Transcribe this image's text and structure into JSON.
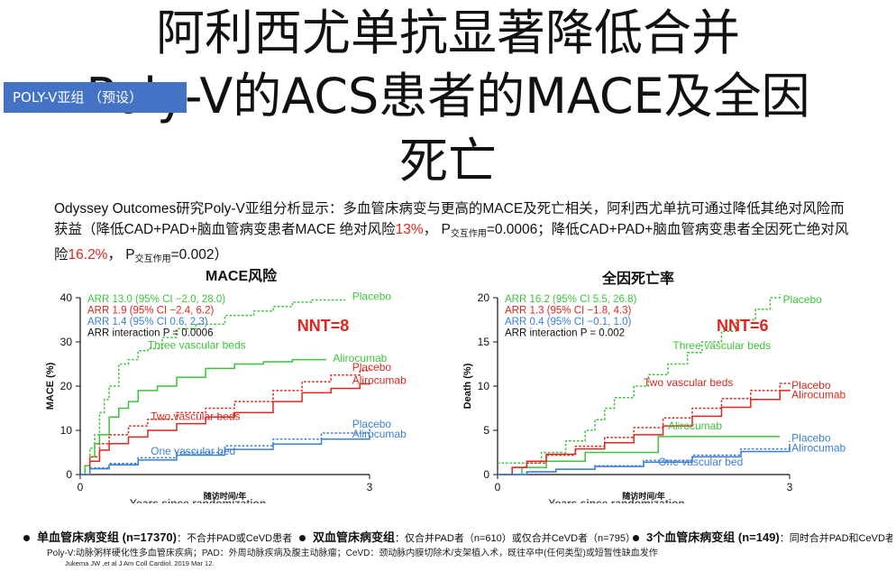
{
  "slide": {
    "title_line1": "阿利西尤单抗显著降低合并",
    "title_line2": "Poly-V的ACS患者的MACE及全因",
    "title_line3": "死亡",
    "badge": "POLY-V亚组 （预设）",
    "summary_p1": "Odyssey Outcomes研究Poly-V亚组分析显示：多血管床病变与更高的MACE及死亡相关，阿利西尤单抗可通过降低其绝对风险而获益（降低CAD+PAD+脑血管病变患者MACE 绝对风险",
    "summary_v1": "13%",
    "summary_p2": "， P",
    "summary_sub": "交互作用",
    "summary_p3": "=0.0006；降低CAD+PAD+脑血管病变患者全因死亡绝对风险",
    "summary_v2": "16.2%",
    "summary_p4": "， P",
    "summary_p5": "=0.002）",
    "legend": [
      {
        "label": "单血管床病变组",
        "n": "(n=17370)",
        "desc": "：不合并PAD或CeVD患者"
      },
      {
        "label": "双血管床病变组",
        "n": "",
        "desc": "：仅合并PAD者（n=610）或仅合并CeVD者（n=795）"
      },
      {
        "label": "3个血管床病变组",
        "n": "(n=149)",
        "desc": "：同时合并PAD和CeVD者"
      }
    ],
    "footnote": "Poly-V:动脉粥样硬化性多血管床疾病；PAD：外周动脉疾病及腹主动脉瘤；CeVD：颈动脉内膜切除术/支架植入术，既往卒中(任何类型)或短暂性缺血发作",
    "citation": "Jukema JW ,et al J Am Coll Cardiol. 2019 Mar 12."
  },
  "chart_data": [
    {
      "type": "line",
      "title": "MACE风险",
      "xlabel": "随访时间/年",
      "xlabel_en": "Years since randomization",
      "ylabel": "MACE (%)",
      "xlim": [
        0,
        3
      ],
      "ylim": [
        0,
        40
      ],
      "xticks": [
        "0",
        "3"
      ],
      "yticks": [
        "0",
        "10",
        "20",
        "30",
        "40"
      ],
      "nnt": "NNT=8",
      "stats": [
        {
          "text": "ARR 13.0 (95% CI −2.0, 28.0)",
          "color": "#3cc43c"
        },
        {
          "text": "ARR 1.9 (95% CI −2.4, 6.2)",
          "color": "#e0261e"
        },
        {
          "text": "ARR 1.4 (95% CI 0.6, 2.3)",
          "color": "#3a7fd8"
        },
        {
          "text": "ARR interaction P = 0.0006",
          "color": "#111111"
        }
      ],
      "group_labels": [
        {
          "text": "Three vascular beds",
          "color": "#3cc43c",
          "x": 0.7,
          "y": 28.5
        },
        {
          "text": "Two vascular beds",
          "color": "#e0261e",
          "x": 0.73,
          "y": 12.3
        },
        {
          "text": "One vascular bed",
          "color": "#3a7fd8",
          "x": 0.73,
          "y": 4.5
        }
      ],
      "series": [
        {
          "name": "Placebo",
          "color": "#3cc43c",
          "dash": true,
          "points": [
            [
              0,
              0
            ],
            [
              0.05,
              2
            ],
            [
              0.1,
              6
            ],
            [
              0.15,
              9
            ],
            [
              0.2,
              14
            ],
            [
              0.25,
              17
            ],
            [
              0.3,
              20
            ],
            [
              0.4,
              25
            ],
            [
              0.5,
              26
            ],
            [
              0.6,
              28
            ],
            [
              0.7,
              28.5
            ],
            [
              0.85,
              31
            ],
            [
              1.0,
              33
            ],
            [
              1.2,
              34
            ],
            [
              1.5,
              36
            ],
            [
              1.8,
              37
            ],
            [
              2.0,
              38
            ],
            [
              2.2,
              39
            ],
            [
              2.4,
              39.5
            ],
            [
              2.75,
              39.5
            ]
          ]
        },
        {
          "name": "Alirocumab",
          "color": "#3cc43c",
          "dash": false,
          "points": [
            [
              0,
              0
            ],
            [
              0.05,
              2
            ],
            [
              0.1,
              4
            ],
            [
              0.15,
              7
            ],
            [
              0.2,
              9
            ],
            [
              0.3,
              13
            ],
            [
              0.4,
              15
            ],
            [
              0.5,
              16.5
            ],
            [
              0.6,
              19
            ],
            [
              0.8,
              20
            ],
            [
              1.0,
              22
            ],
            [
              1.3,
              24
            ],
            [
              1.6,
              25
            ],
            [
              1.9,
              25.5
            ],
            [
              2.2,
              26
            ],
            [
              2.55,
              26
            ]
          ]
        },
        {
          "name": "Placebo",
          "color": "#e0261e",
          "dash": true,
          "points": [
            [
              0,
              0
            ],
            [
              0.1,
              4
            ],
            [
              0.2,
              7
            ],
            [
              0.3,
              9
            ],
            [
              0.5,
              11
            ],
            [
              0.7,
              12.5
            ],
            [
              1.0,
              14
            ],
            [
              1.3,
              15
            ],
            [
              1.6,
              16.5
            ],
            [
              2.0,
              19
            ],
            [
              2.3,
              21
            ],
            [
              2.6,
              22.5
            ],
            [
              2.9,
              23.5
            ],
            [
              3.0,
              24
            ]
          ]
        },
        {
          "name": "Alirocumab",
          "color": "#e0261e",
          "dash": false,
          "points": [
            [
              0,
              0
            ],
            [
              0.1,
              3
            ],
            [
              0.2,
              5.5
            ],
            [
              0.3,
              7
            ],
            [
              0.5,
              8.5
            ],
            [
              0.7,
              10
            ],
            [
              1.0,
              11.5
            ],
            [
              1.3,
              13
            ],
            [
              1.6,
              14
            ],
            [
              2.0,
              16.5
            ],
            [
              2.3,
              18.5
            ],
            [
              2.6,
              19.5
            ],
            [
              2.9,
              20.5
            ],
            [
              3.0,
              20.8
            ]
          ]
        },
        {
          "name": "Placebo",
          "color": "#3a7fd8",
          "dash": true,
          "points": [
            [
              0,
              0
            ],
            [
              0.1,
              1.5
            ],
            [
              0.3,
              2.5
            ],
            [
              0.6,
              3.8
            ],
            [
              1.0,
              5
            ],
            [
              1.5,
              6.5
            ],
            [
              2.0,
              8
            ],
            [
              2.5,
              9.4
            ],
            [
              3.0,
              10.5
            ]
          ]
        },
        {
          "name": "Alirocumab",
          "color": "#3a7fd8",
          "dash": false,
          "points": [
            [
              0,
              0
            ],
            [
              0.1,
              1.3
            ],
            [
              0.3,
              2.2
            ],
            [
              0.6,
              3.3
            ],
            [
              1.0,
              4.4
            ],
            [
              1.5,
              5.7
            ],
            [
              2.0,
              6.9
            ],
            [
              2.5,
              8
            ],
            [
              3.0,
              9
            ]
          ]
        }
      ],
      "series_labels": [
        {
          "text": "Placebo",
          "color": "#3cc43c",
          "x": 2.82,
          "y": 39.5
        },
        {
          "text": "Alirocumab",
          "color": "#3cc43c",
          "x": 2.62,
          "y": 25.5
        },
        {
          "text": "Placebo",
          "color": "#e0261e",
          "x": 2.82,
          "y": 23.5
        },
        {
          "text": "Alirocumab",
          "color": "#e0261e",
          "x": 2.82,
          "y": 20.5
        },
        {
          "text": "Placebo",
          "color": "#3a7fd8",
          "x": 2.82,
          "y": 10.6
        },
        {
          "text": "Alirocumab",
          "color": "#3a7fd8",
          "x": 2.82,
          "y": 8.4
        }
      ]
    },
    {
      "type": "line",
      "title": "全因死亡率",
      "xlabel": "随访时间/年",
      "xlabel_en": "Years since randomization",
      "ylabel": "Death (%)",
      "xlim": [
        0,
        3
      ],
      "ylim": [
        0,
        20
      ],
      "xticks": [
        "0",
        "3"
      ],
      "yticks": [
        "0",
        "5",
        "10",
        "15",
        "20"
      ],
      "nnt": "NNT=6",
      "stats": [
        {
          "text": "ARR 16.2 (95% CI 5.5, 26.8)",
          "color": "#3cc43c"
        },
        {
          "text": "ARR 1.3 (95% CI −1.8, 4.3)",
          "color": "#e0261e"
        },
        {
          "text": "ARR 0.4 (95% CI −0.1, 1.0)",
          "color": "#3a7fd8"
        },
        {
          "text": "ARR interaction P = 0.002",
          "color": "#111111"
        }
      ],
      "group_labels": [
        {
          "text": "Three vascular beds",
          "color": "#3cc43c",
          "x": 1.8,
          "y": 14.2
        },
        {
          "text": "Two vascular beds",
          "color": "#e0261e",
          "x": 1.5,
          "y": 10.0
        },
        {
          "text": "One vascular bed",
          "color": "#3a7fd8",
          "x": 1.65,
          "y": 1.0
        }
      ],
      "series": [
        {
          "name": "Placebo",
          "color": "#3cc43c",
          "dash": true,
          "points": [
            [
              0,
              1.3
            ],
            [
              0.3,
              1.3
            ],
            [
              0.45,
              2.5
            ],
            [
              0.7,
              3.8
            ],
            [
              0.9,
              5
            ],
            [
              1.0,
              6.2
            ],
            [
              1.1,
              7.5
            ],
            [
              1.2,
              8.7
            ],
            [
              1.4,
              10
            ],
            [
              1.55,
              11.3
            ],
            [
              1.75,
              12.5
            ],
            [
              1.95,
              13.8
            ],
            [
              2.1,
              15
            ],
            [
              2.3,
              16.2
            ],
            [
              2.45,
              17.5
            ],
            [
              2.65,
              18.7
            ],
            [
              2.8,
              20
            ],
            [
              2.9,
              20.4
            ]
          ]
        },
        {
          "name": "Alirocumab",
          "color": "#3cc43c",
          "dash": false,
          "points": [
            [
              0,
              0
            ],
            [
              0.25,
              0.8
            ],
            [
              0.5,
              1.5
            ],
            [
              0.9,
              2.5
            ],
            [
              1.3,
              2.5
            ],
            [
              1.65,
              2.5
            ],
            [
              1.65,
              4.3
            ],
            [
              2.4,
              4.3
            ],
            [
              2.9,
              4.3
            ]
          ]
        },
        {
          "name": "Placebo",
          "color": "#e0261e",
          "dash": true,
          "points": [
            [
              0,
              0
            ],
            [
              0.15,
              0.8
            ],
            [
              0.3,
              1.3
            ],
            [
              0.5,
              2.2
            ],
            [
              0.8,
              3.2
            ],
            [
              1.1,
              4.2
            ],
            [
              1.4,
              5.3
            ],
            [
              1.7,
              6.4
            ],
            [
              2.0,
              7.5
            ],
            [
              2.3,
              8.6
            ],
            [
              2.6,
              9.5
            ],
            [
              2.9,
              10.3
            ],
            [
              3.0,
              10.4
            ]
          ]
        },
        {
          "name": "Alirocumab",
          "color": "#e0261e",
          "dash": false,
          "points": [
            [
              0,
              0
            ],
            [
              0.15,
              0.8
            ],
            [
              0.3,
              1.5
            ],
            [
              0.5,
              2.3
            ],
            [
              0.8,
              2.9
            ],
            [
              1.1,
              3.6
            ],
            [
              1.4,
              4.5
            ],
            [
              1.7,
              5.5
            ],
            [
              2.0,
              6.6
            ],
            [
              2.3,
              7.6
            ],
            [
              2.6,
              8.5
            ],
            [
              2.9,
              9.5
            ],
            [
              3.0,
              9.6
            ]
          ]
        },
        {
          "name": "Placebo",
          "color": "#3a7fd8",
          "dash": true,
          "points": [
            [
              0,
              0
            ],
            [
              0.3,
              0.3
            ],
            [
              0.6,
              0.6
            ],
            [
              1.0,
              1.0
            ],
            [
              1.5,
              1.6
            ],
            [
              2.0,
              2.2
            ],
            [
              2.5,
              2.9
            ],
            [
              3.0,
              3.8
            ]
          ]
        },
        {
          "name": "Alirocumab",
          "color": "#3a7fd8",
          "dash": false,
          "points": [
            [
              0,
              0
            ],
            [
              0.3,
              0.3
            ],
            [
              0.6,
              0.6
            ],
            [
              1.0,
              0.9
            ],
            [
              1.5,
              1.4
            ],
            [
              2.0,
              2.0
            ],
            [
              2.5,
              2.6
            ],
            [
              3.0,
              3.2
            ]
          ]
        }
      ],
      "series_labels": [
        {
          "text": "Placebo",
          "color": "#3cc43c",
          "x": 2.93,
          "y": 19.4
        },
        {
          "text": "Alirocumab",
          "color": "#3cc43c",
          "x": 1.75,
          "y": 5.1
        },
        {
          "text": "Placebo",
          "color": "#e0261e",
          "x": 3.02,
          "y": 9.7
        },
        {
          "text": "Alirocumab",
          "color": "#e0261e",
          "x": 3.02,
          "y": 8.6
        },
        {
          "text": "Placebo",
          "color": "#3a7fd8",
          "x": 3.02,
          "y": 3.7
        },
        {
          "text": "Alirocumab",
          "color": "#3a7fd8",
          "x": 3.02,
          "y": 2.6
        }
      ]
    }
  ]
}
